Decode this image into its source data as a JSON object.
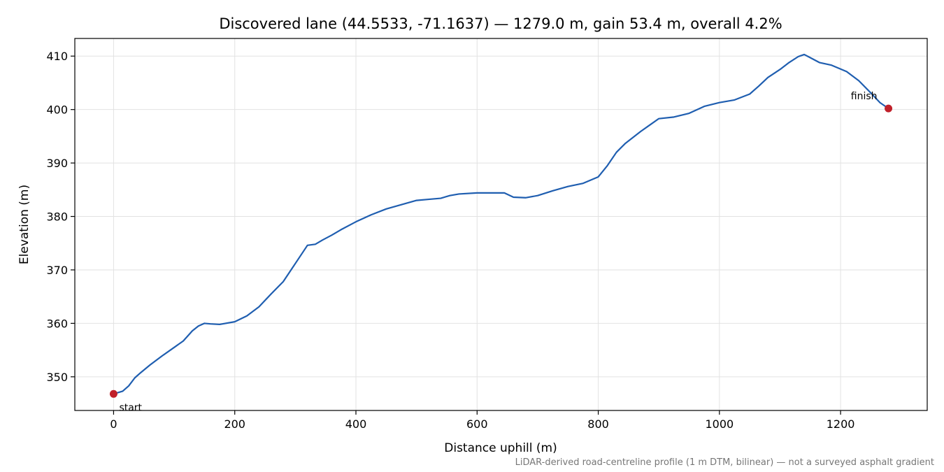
{
  "chart_data": {
    "type": "line",
    "title": "Discovered lane (44.5533, -71.1637) — 1279.0 m, gain 53.4 m, overall 4.2%",
    "xlabel": "Distance uphill (m)",
    "ylabel": "Elevation (m)",
    "xlim": [
      -64,
      1343
    ],
    "ylim": [
      343.7,
      413.3
    ],
    "x_ticks": [
      0,
      200,
      400,
      600,
      800,
      1000,
      1200
    ],
    "y_ticks": [
      350,
      360,
      370,
      380,
      390,
      400,
      410
    ],
    "grid": true,
    "line_color": "#1f5eb0",
    "marker_color": "#c0202a",
    "series": [
      {
        "x": [
          0,
          15,
          25,
          35,
          45,
          60,
          80,
          100,
          115,
          130,
          140,
          150,
          160,
          175,
          200,
          220,
          240,
          260,
          280,
          300,
          320,
          333,
          345,
          360,
          375,
          400,
          425,
          450,
          475,
          500,
          520,
          540,
          555,
          570,
          600,
          625,
          645,
          660,
          680,
          700,
          725,
          750,
          775,
          800,
          815,
          830,
          845,
          870,
          885,
          900,
          925,
          950,
          975,
          1000,
          1025,
          1050,
          1065,
          1080,
          1100,
          1115,
          1130,
          1140,
          1150,
          1165,
          1185,
          1210,
          1230,
          1250,
          1265,
          1279
        ],
        "y": [
          346.8,
          347.3,
          348.3,
          349.8,
          350.8,
          352.2,
          353.9,
          355.5,
          356.7,
          358.6,
          359.5,
          360.0,
          359.9,
          359.8,
          360.3,
          361.4,
          363.1,
          365.5,
          367.8,
          371.2,
          374.6,
          374.8,
          375.6,
          376.5,
          377.5,
          379.0,
          380.3,
          381.4,
          382.2,
          383.0,
          383.2,
          383.4,
          383.9,
          384.2,
          384.4,
          384.4,
          384.4,
          383.6,
          383.5,
          383.9,
          384.8,
          385.6,
          386.2,
          387.4,
          389.5,
          392.0,
          393.7,
          395.9,
          397.1,
          398.3,
          398.6,
          399.3,
          400.6,
          401.3,
          401.8,
          402.9,
          404.4,
          406.0,
          407.5,
          408.8,
          409.9,
          410.3,
          409.7,
          408.8,
          408.3,
          407.1,
          405.4,
          403.1,
          401.3,
          400.2
        ]
      }
    ],
    "annotations": [
      {
        "text": "start",
        "x": 0,
        "y": 346.8
      },
      {
        "text": "finish",
        "x": 1279,
        "y": 400.2
      }
    ],
    "footnote": "LiDAR-derived road-centreline profile (1 m DTM, bilinear) — not a surveyed asphalt gradient"
  }
}
